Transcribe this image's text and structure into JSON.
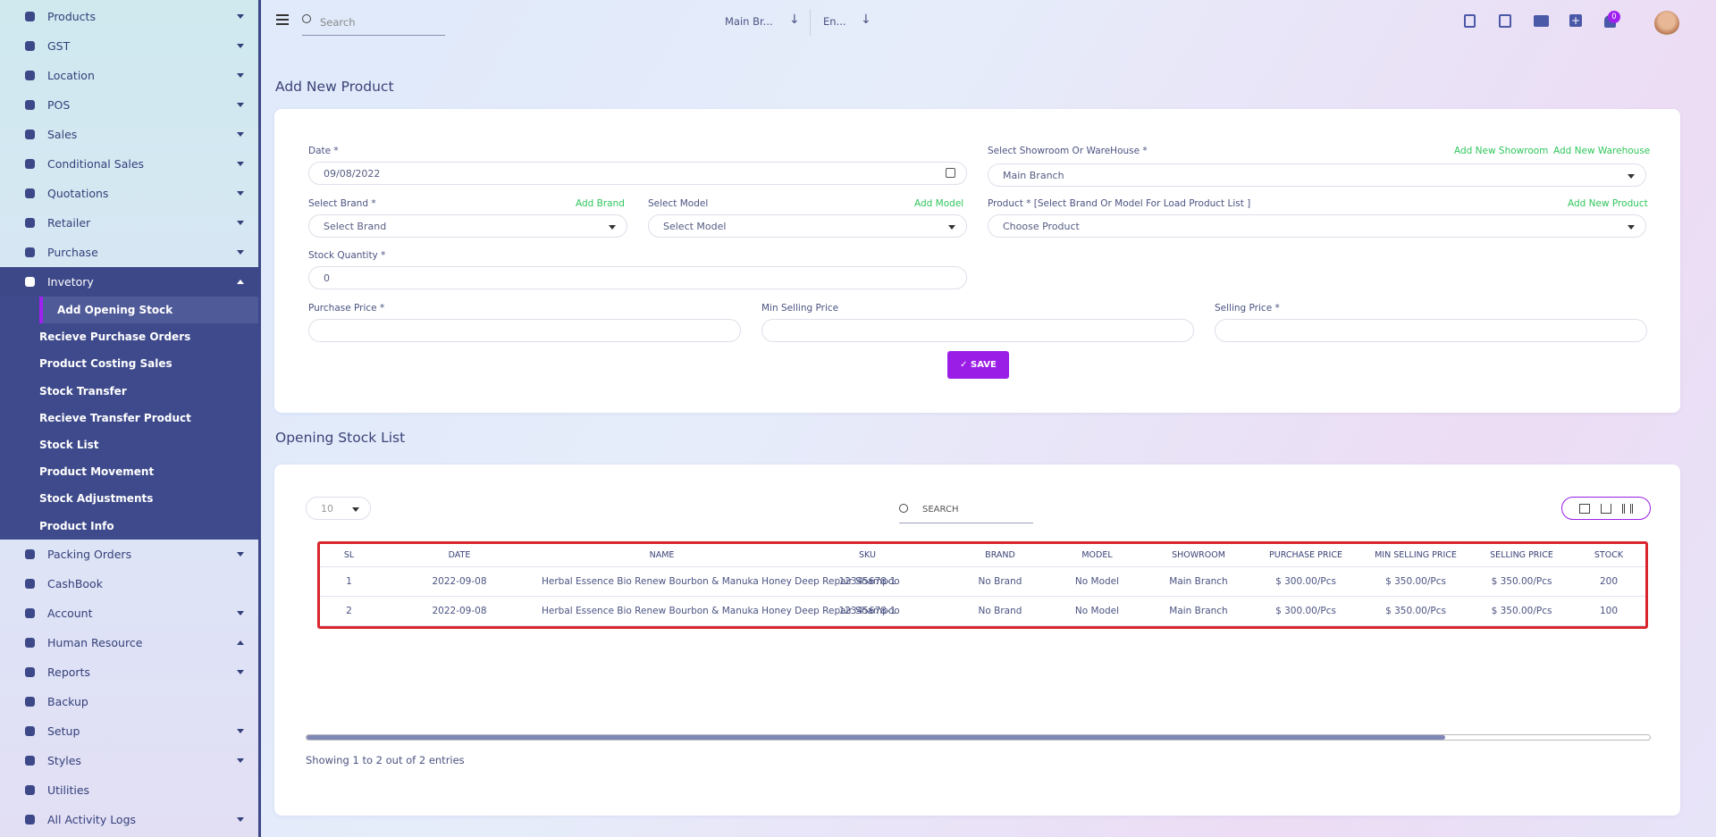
{
  "sidebar": {
    "items": [
      {
        "label": "Products",
        "dropdown": "down"
      },
      {
        "label": "GST",
        "dropdown": "down"
      },
      {
        "label": "Location",
        "dropdown": "down"
      },
      {
        "label": "POS",
        "dropdown": "down"
      },
      {
        "label": "Sales",
        "dropdown": "down"
      },
      {
        "label": "Conditional Sales",
        "dropdown": "down"
      },
      {
        "label": "Quotations",
        "dropdown": "down"
      },
      {
        "label": "Retailer",
        "dropdown": "down"
      },
      {
        "label": "Purchase",
        "dropdown": "down"
      },
      {
        "label": "Invetory",
        "dropdown": "up",
        "open": true,
        "children": [
          "Add Opening Stock",
          "Recieve Purchase Orders",
          "Product Costing Sales",
          "Stock Transfer",
          "Recieve Transfer Product",
          "Stock List",
          "Product Movement",
          "Stock Adjustments",
          "Product Info"
        ],
        "active_child": 0
      },
      {
        "label": "Packing Orders",
        "dropdown": "down"
      },
      {
        "label": "CashBook"
      },
      {
        "label": "Account",
        "dropdown": "down"
      },
      {
        "label": "Human Resource",
        "dropdown": "up"
      },
      {
        "label": "Reports",
        "dropdown": "down"
      },
      {
        "label": "Backup"
      },
      {
        "label": "Setup",
        "dropdown": "down"
      },
      {
        "label": "Styles",
        "dropdown": "down"
      },
      {
        "label": "Utilities"
      },
      {
        "label": "All Activity Logs",
        "dropdown": "down"
      }
    ]
  },
  "topbar": {
    "search_placeholder": "Search",
    "branch": "Main Br...",
    "language": "En...",
    "notifications": "0"
  },
  "form": {
    "title": "Add New Product",
    "date_label": "Date *",
    "date_value": "09/08/2022",
    "showroom_label": "Select Showroom Or WareHouse *",
    "add_showroom": "Add New Showroom",
    "add_warehouse": "Add New Warehouse",
    "showroom_value": "Main Branch",
    "brand_label": "Select Brand *",
    "add_brand": "Add Brand",
    "brand_placeholder": "Select Brand",
    "model_label": "Select Model",
    "add_model": "Add Model",
    "model_placeholder": "Select Model",
    "product_label": "Product * [Select Brand Or Model For Load Product List ]",
    "add_product": "Add New Product",
    "product_placeholder": "Choose Product",
    "qty_label": "Stock Quantity *",
    "qty_value": "0",
    "purchase_label": "Purchase Price *",
    "min_label": "Min Selling Price",
    "selling_label": "Selling Price *",
    "save": "SAVE"
  },
  "list": {
    "title": "Opening Stock List",
    "page_size": "10",
    "search_placeholder": "SEARCH",
    "footer": "Showing 1 to 2 out of 2 entries"
  },
  "table": {
    "headers": [
      "SL",
      "DATE",
      "NAME",
      "SKU",
      "BRAND",
      "MODEL",
      "SHOWROOM",
      "PURCHASE PRICE",
      "MIN SELLING PRICE",
      "SELLING PRICE",
      "STOCK"
    ],
    "rows": [
      [
        "1",
        "2022-09-08",
        "Herbal Essence Bio Renew Bourbon & Manuka Honey Deep Repair Shampoo",
        "12345678-1",
        "No Brand",
        "No Model",
        "Main Branch",
        "$ 300.00/Pcs",
        "$ 350.00/Pcs",
        "$ 350.00/Pcs",
        "200"
      ],
      [
        "2",
        "2022-09-08",
        "Herbal Essence Bio Renew Bourbon & Manuka Honey Deep Repair Shampoo",
        "12345678-1",
        "No Brand",
        "No Model",
        "Main Branch",
        "$ 300.00/Pcs",
        "$ 350.00/Pcs",
        "$ 350.00/Pcs",
        "100"
      ]
    ]
  }
}
